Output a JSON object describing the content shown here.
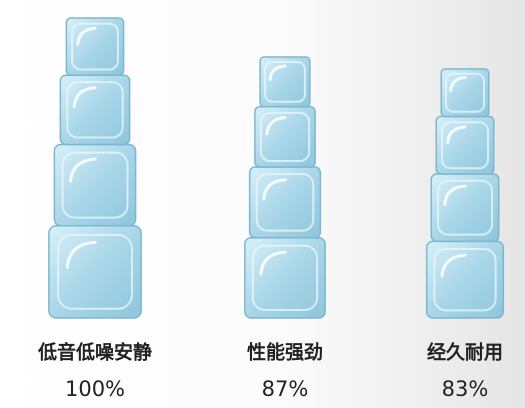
{
  "chart_data": {
    "type": "pictograph",
    "categories": [
      "低音低噪安静",
      "性能强劲",
      "经久耐用"
    ],
    "values": [
      100,
      87,
      83
    ],
    "value_labels": [
      "100%",
      "87%",
      "83%"
    ],
    "color": "#a9d6e8"
  }
}
